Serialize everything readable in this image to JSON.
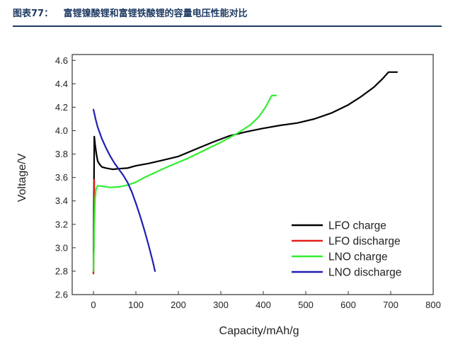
{
  "figure": {
    "number": "图表77：",
    "title": "富锂镍酸锂和富锂铁酸锂的容量电压性能对比"
  },
  "colors": {
    "caption": "#1f3b63",
    "axis": "#333333"
  },
  "chart_data": {
    "type": "line",
    "title": "",
    "xlabel": "Capacity/mAh/g",
    "ylabel": "Voltage/V",
    "xlim": [
      -50,
      800
    ],
    "ylim": [
      2.6,
      4.65
    ],
    "xticks": [
      0,
      100,
      200,
      300,
      400,
      500,
      600,
      700,
      800
    ],
    "yticks": [
      2.6,
      2.8,
      3.0,
      3.2,
      3.4,
      3.6,
      3.8,
      4.0,
      4.2,
      4.4,
      4.6
    ],
    "grid": false,
    "legend_position": "bottom-right",
    "series": [
      {
        "name": "LFO charge",
        "color": "#000000",
        "x": [
          0,
          2,
          4,
          7,
          10,
          15,
          20,
          30,
          45,
          60,
          80,
          100,
          130,
          160,
          200,
          240,
          280,
          320,
          360,
          400,
          440,
          480,
          520,
          560,
          600,
          630,
          660,
          680,
          695,
          700,
          715
        ],
        "y": [
          2.78,
          3.95,
          3.88,
          3.8,
          3.74,
          3.71,
          3.69,
          3.68,
          3.67,
          3.675,
          3.68,
          3.7,
          3.72,
          3.745,
          3.78,
          3.84,
          3.9,
          3.955,
          3.99,
          4.02,
          4.045,
          4.065,
          4.1,
          4.15,
          4.22,
          4.29,
          4.37,
          4.44,
          4.5,
          4.5,
          4.5
        ]
      },
      {
        "name": "LFO discharge",
        "color": "#e32119",
        "x": [
          0,
          1,
          2,
          2
        ],
        "y": [
          2.78,
          3.0,
          3.35,
          3.58
        ]
      },
      {
        "name": "LNO charge",
        "color": "#33ee33",
        "x": [
          0,
          2,
          4,
          6,
          10,
          20,
          40,
          60,
          80,
          100,
          120,
          150,
          180,
          220,
          260,
          300,
          340,
          370,
          390,
          405,
          420,
          430
        ],
        "y": [
          2.8,
          3.2,
          3.42,
          3.5,
          3.53,
          3.525,
          3.515,
          3.52,
          3.535,
          3.56,
          3.6,
          3.65,
          3.7,
          3.76,
          3.83,
          3.9,
          3.98,
          4.05,
          4.12,
          4.2,
          4.3,
          4.3
        ]
      },
      {
        "name": "LNO discharge",
        "color": "#1f1fb4",
        "x": [
          0,
          2,
          5,
          10,
          20,
          30,
          40,
          50,
          60,
          70,
          80,
          90,
          100,
          110,
          120,
          130,
          140,
          145
        ],
        "y": [
          4.18,
          4.15,
          4.1,
          4.03,
          3.93,
          3.85,
          3.78,
          3.72,
          3.67,
          3.62,
          3.56,
          3.48,
          3.38,
          3.27,
          3.15,
          3.02,
          2.88,
          2.8
        ]
      }
    ]
  }
}
